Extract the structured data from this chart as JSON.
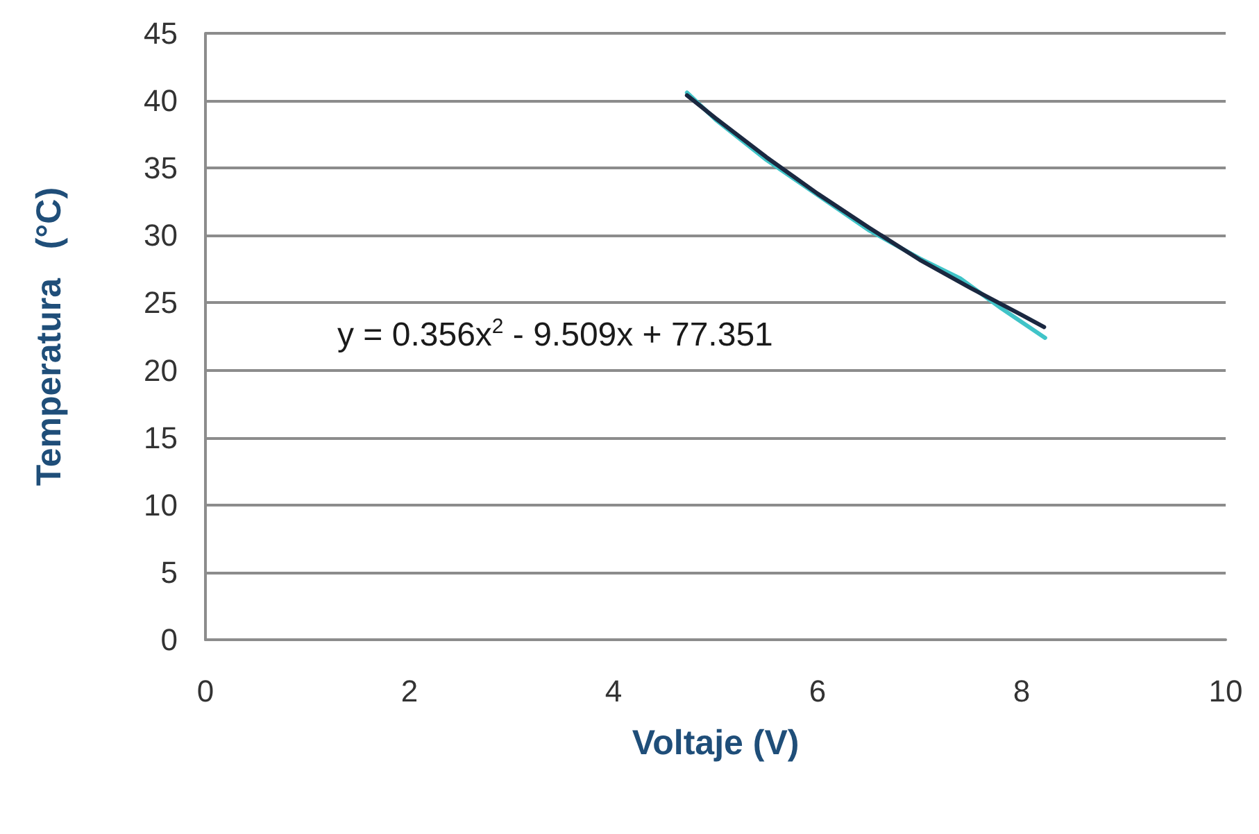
{
  "chart_data": {
    "type": "line",
    "xlabel": "Voltaje (V)",
    "ylabel": "Temperatura   (°C)",
    "series": [
      {
        "color": "#40c4c8",
        "x": [
          4.72,
          5.0,
          5.5,
          6.0,
          6.5,
          7.0,
          7.4,
          7.8,
          8.23
        ],
        "values": [
          40.6,
          38.6,
          35.6,
          33.0,
          30.4,
          28.3,
          26.8,
          24.6,
          22.4
        ]
      },
      {
        "type": "line",
        "color": "#1a2840",
        "x": [
          4.72,
          5.0,
          5.5,
          6.0,
          6.5,
          7.0,
          7.5,
          8.0,
          8.22
        ],
        "values": [
          40.4,
          38.7,
          35.8,
          33.1,
          30.6,
          28.2,
          26.1,
          24.1,
          23.2
        ]
      }
    ],
    "annotations": [
      "y = 0.356x$^{2}$ - 9.509x + 77.351"
    ],
    "xlim": [
      0,
      10
    ],
    "xticks": [
      0,
      2,
      4,
      6,
      8,
      10
    ],
    "ylim": [
      0,
      45
    ],
    "yticks": [
      0,
      5,
      10,
      15,
      20,
      25,
      30,
      35,
      40,
      45
    ],
    "grid": "y",
    "marker": "none",
    "line_style": "solid"
  }
}
